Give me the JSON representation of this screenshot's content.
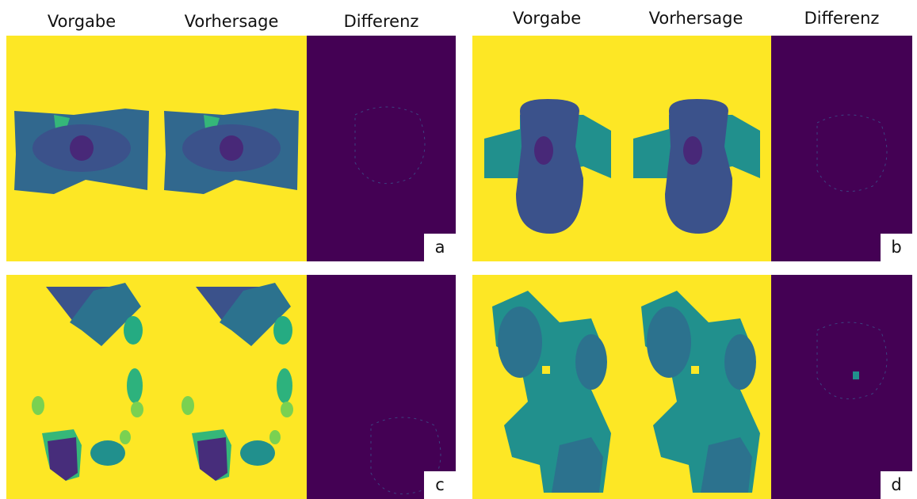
{
  "panels": [
    {
      "label": "a",
      "columns": [
        "Vorgabe",
        "Vorhersage",
        "Differenz"
      ]
    },
    {
      "label": "b",
      "columns": [
        "Vorgabe",
        "Vorhersage",
        "Differenz"
      ]
    },
    {
      "label": "c",
      "columns": [
        "Vorgabe",
        "Vorhersage",
        "Differenz"
      ]
    },
    {
      "label": "d",
      "columns": [
        "Vorgabe",
        "Vorhersage",
        "Differenz"
      ]
    }
  ]
}
